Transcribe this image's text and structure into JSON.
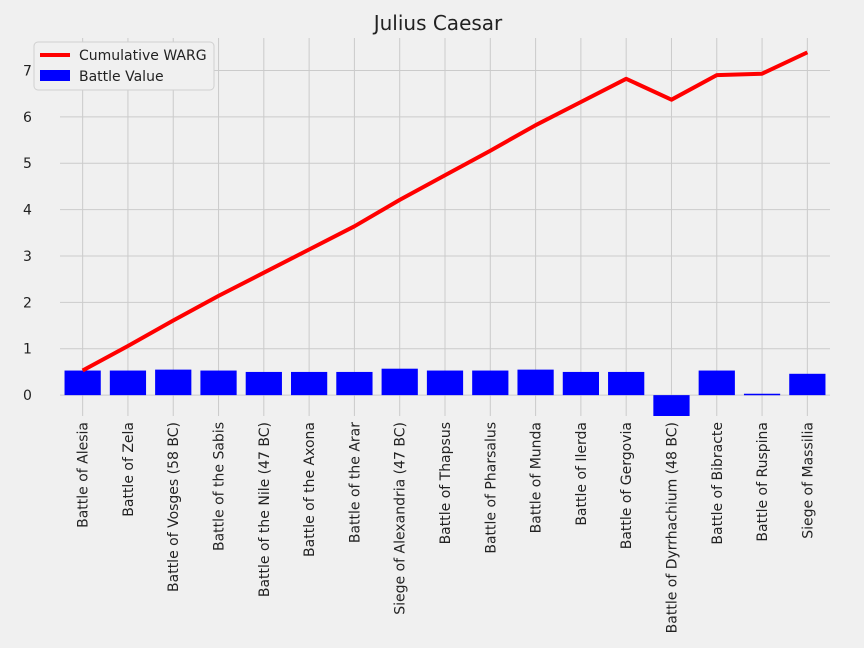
{
  "chart_data": {
    "type": "bar",
    "title": "Julius Caesar",
    "xlabel": "",
    "ylabel": "",
    "categories": [
      "Battle of Alesia",
      "Battle of Zela",
      "Battle of Vosges (58 BC)",
      "Battle of the Sabis",
      "Battle of the Nile (47 BC)",
      "Battle of the Axona",
      "Battle of the Arar",
      "Siege of Alexandria (47 BC)",
      "Battle of Thapsus",
      "Battle of Pharsalus",
      "Battle of Munda",
      "Battle of Ilerda",
      "Battle of Gergovia",
      "Battle of Dyrrhachium (48 BC)",
      "Battle of Bibracte",
      "Battle of Ruspina",
      "Siege of Massilia"
    ],
    "series": [
      {
        "name": "Battle Value",
        "kind": "bar",
        "color": "#0000ff",
        "values": [
          0.53,
          0.53,
          0.55,
          0.53,
          0.5,
          0.5,
          0.5,
          0.57,
          0.53,
          0.53,
          0.55,
          0.5,
          0.5,
          -0.45,
          0.53,
          0.03,
          0.46
        ]
      },
      {
        "name": "Cumulative WARG",
        "kind": "line",
        "color": "#ff0000",
        "values": [
          0.53,
          1.06,
          1.61,
          2.14,
          2.64,
          3.14,
          3.64,
          4.21,
          4.74,
          5.27,
          5.82,
          6.32,
          6.82,
          6.37,
          6.9,
          6.93,
          7.39
        ]
      }
    ],
    "ylim": [
      -0.45,
      7.7
    ],
    "yticks": [
      0,
      1,
      2,
      3,
      4,
      5,
      6,
      7
    ],
    "grid": true,
    "legend": "top-left"
  }
}
